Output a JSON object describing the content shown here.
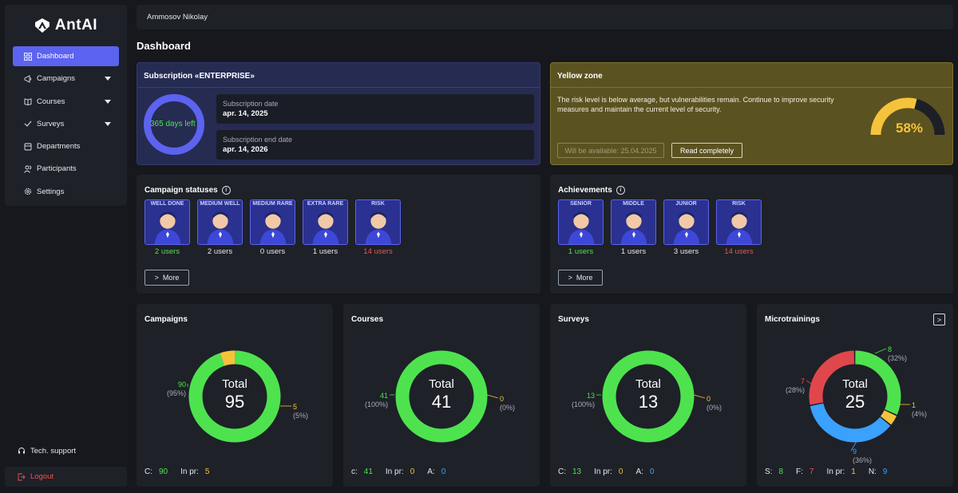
{
  "app": {
    "name": "AntAI"
  },
  "user": {
    "name": "Ammosov Nikolay"
  },
  "page_title": "Dashboard",
  "sidebar": {
    "items": [
      {
        "label": "Dashboard",
        "icon": "grid-icon",
        "active": true
      },
      {
        "label": "Campaigns",
        "icon": "campaign-icon",
        "has_submenu": true
      },
      {
        "label": "Courses",
        "icon": "book-icon",
        "has_submenu": true
      },
      {
        "label": "Surveys",
        "icon": "survey-icon",
        "has_submenu": true
      },
      {
        "label": "Departments",
        "icon": "building-icon"
      },
      {
        "label": "Participants",
        "icon": "users-icon"
      },
      {
        "label": "Settings",
        "icon": "gear-icon"
      }
    ],
    "support": "Tech. support",
    "logout": "Logout"
  },
  "subscription": {
    "title": "Subscription «ENTERPRISE»",
    "days_left": "365 days left",
    "start_label": "Subscription date",
    "start_value": "apr. 14, 2025",
    "end_label": "Subscription end date",
    "end_value": "apr. 14, 2026"
  },
  "zone": {
    "title": "Yellow zone",
    "text": "The risk level is below average, but vulnerabilities remain. Continue to improve security measures and maintain the current level of security.",
    "available_btn": "Will be available: 25.04.2025",
    "read_btn": "Read completely",
    "risk_percent_label": "58%",
    "risk_fraction": 0.58,
    "colors": {
      "bg": "#5b5221",
      "gauge_fill": "#f5c33b",
      "gauge_track": "#1c1f26"
    }
  },
  "campaign_statuses": {
    "title": "Campaign statuses",
    "more": "More",
    "badges": [
      {
        "tag": "WELL DONE",
        "count": "2 users",
        "color": "green"
      },
      {
        "tag": "MEDIUM WELL",
        "count": "2 users",
        "color": "white"
      },
      {
        "tag": "MEDIUM RARE",
        "count": "0 users",
        "color": "white"
      },
      {
        "tag": "EXTRA RARE",
        "count": "1 users",
        "color": "white"
      },
      {
        "tag": "RISK",
        "count": "14 users",
        "color": "red"
      }
    ]
  },
  "achievements": {
    "title": "Achievements",
    "more": "More",
    "badges": [
      {
        "tag": "SENIOR",
        "count": "1 users",
        "color": "green"
      },
      {
        "tag": "MIDDLE",
        "count": "1 users",
        "color": "white"
      },
      {
        "tag": "JUNIOR",
        "count": "3 users",
        "color": "white"
      },
      {
        "tag": "RISK",
        "count": "14 users",
        "color": "red"
      }
    ]
  },
  "stats": {
    "campaigns": {
      "title": "Campaigns",
      "total_label": "Total",
      "total": "95",
      "segments": [
        {
          "value": "90",
          "pct": "(95%)",
          "n": 90,
          "color": "#4ee34e"
        },
        {
          "value": "5",
          "pct": "(5%)",
          "n": 5,
          "color": "#f5c33b"
        }
      ],
      "footer": [
        {
          "k": "C:",
          "v": "90",
          "c": "green"
        },
        {
          "k": "In pr:",
          "v": "5",
          "c": "yellow"
        }
      ]
    },
    "courses": {
      "title": "Courses",
      "total_label": "Total",
      "total": "41",
      "segments": [
        {
          "value": "41",
          "pct": "(100%)",
          "n": 41,
          "color": "#4ee34e"
        },
        {
          "value": "0",
          "pct": "(0%)",
          "n": 0,
          "color": "#f5c33b"
        }
      ],
      "footer": [
        {
          "k": "c:",
          "v": "41",
          "c": "green"
        },
        {
          "k": "In pr:",
          "v": "0",
          "c": "yellow"
        },
        {
          "k": "A:",
          "v": "0",
          "c": "blue"
        }
      ]
    },
    "surveys": {
      "title": "Surveys",
      "total_label": "Total",
      "total": "13",
      "segments": [
        {
          "value": "13",
          "pct": "(100%)",
          "n": 13,
          "color": "#4ee34e"
        },
        {
          "value": "0",
          "pct": "(0%)",
          "n": 0,
          "color": "#f5c33b"
        }
      ],
      "footer": [
        {
          "k": "C:",
          "v": "13",
          "c": "green"
        },
        {
          "k": "In pr:",
          "v": "0",
          "c": "yellow"
        },
        {
          "k": "A:",
          "v": "0",
          "c": "blue"
        }
      ]
    },
    "microtrainings": {
      "title": "Microtrainings",
      "total_label": "Total",
      "total": "25",
      "segments": [
        {
          "value": "8",
          "pct": "(32%)",
          "n": 8,
          "color": "#4ee34e"
        },
        {
          "value": "1",
          "pct": "(4%)",
          "n": 1,
          "color": "#f5c33b"
        },
        {
          "value": "9",
          "pct": "(36%)",
          "n": 9,
          "color": "#3aa1ff"
        },
        {
          "value": "7",
          "pct": "(28%)",
          "n": 7,
          "color": "#e0474c"
        }
      ],
      "footer": [
        {
          "k": "S:",
          "v": "8",
          "c": "green"
        },
        {
          "k": "F:",
          "v": "7",
          "c": "red"
        },
        {
          "k": "In pr:",
          "v": "1",
          "c": "yellow"
        },
        {
          "k": "N:",
          "v": "9",
          "c": "blue"
        }
      ]
    }
  }
}
